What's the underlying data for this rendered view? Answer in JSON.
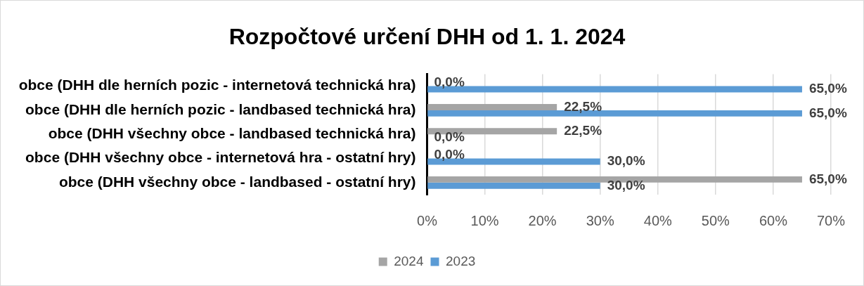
{
  "chart_data": {
    "type": "bar",
    "orientation": "horizontal",
    "title": "Rozpočtové určení DHH od 1. 1. 2024",
    "categories": [
      "obce (DHH dle herních pozic - internetová technická hra)",
      "obce (DHH dle herních pozic - landbased technická hra)",
      "obce (DHH všechny obce - landbased technická hra)",
      "obce (DHH všechny obce - internetová hra - ostatní hry)",
      "obce (DHH všechny obce - landbased - ostatní hry)"
    ],
    "series": [
      {
        "name": "2024",
        "color": "#a5a5a5",
        "values": [
          0,
          22.5,
          22.5,
          0,
          65
        ],
        "value_labels": [
          "0,0%",
          "22,5%",
          "22,5%",
          "0,0%",
          "65,0%"
        ]
      },
      {
        "name": "2023",
        "color": "#5b9bd5",
        "values": [
          65,
          65,
          0,
          30,
          30
        ],
        "value_labels": [
          "65,0%",
          "65,0%",
          "0,0%",
          "30,0%",
          "30,0%"
        ]
      }
    ],
    "xlim": [
      0,
      70
    ],
    "xticks": [
      {
        "value": 0,
        "label": "0%"
      },
      {
        "value": 10,
        "label": "10%"
      },
      {
        "value": 20,
        "label": "20%"
      },
      {
        "value": 30,
        "label": "30%"
      },
      {
        "value": 40,
        "label": "40%"
      },
      {
        "value": 50,
        "label": "50%"
      },
      {
        "value": 60,
        "label": "60%"
      },
      {
        "value": 70,
        "label": "70%"
      }
    ],
    "grid": "x",
    "legend": "bottom"
  }
}
